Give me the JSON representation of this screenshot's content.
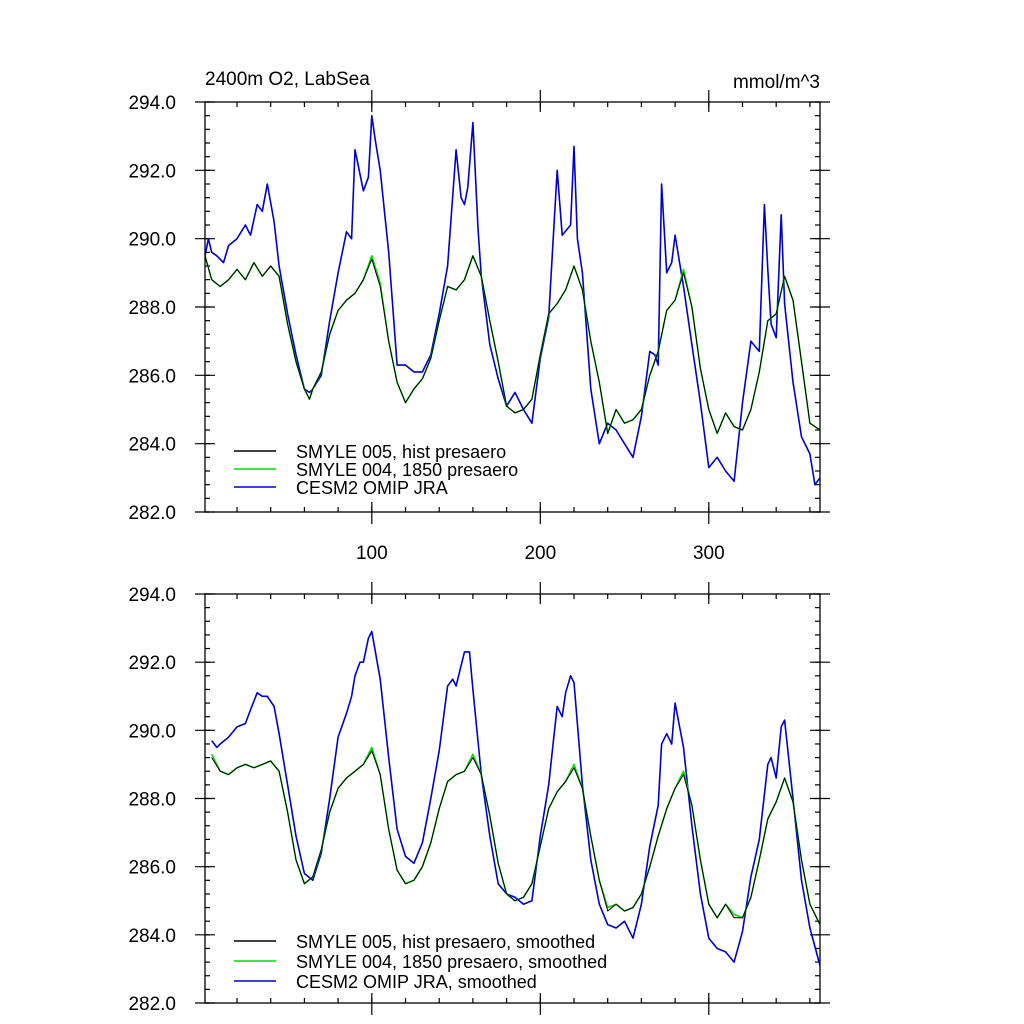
{
  "chart_data": [
    {
      "type": "line",
      "title": "2400m O2, LabSea",
      "units": "mmol/m^3",
      "xlim": [
        1,
        366
      ],
      "ylim": [
        282,
        294
      ],
      "x_ticks": [
        100,
        200,
        300
      ],
      "x_tick_labels": [
        "100",
        "200",
        "300"
      ],
      "y_ticks": [
        282,
        284,
        286,
        288,
        290,
        292,
        294
      ],
      "y_tick_labels": [
        "282.0",
        "284.0",
        "286.0",
        "288.0",
        "290.0",
        "292.0",
        "294.0"
      ],
      "legend_position": "bottom-left",
      "series": [
        {
          "name": "SMYLE 005, hist presaero",
          "color": "#000000",
          "x": [
            1,
            5,
            10,
            15,
            20,
            25,
            30,
            35,
            40,
            45,
            50,
            55,
            60,
            63,
            65,
            70,
            75,
            80,
            85,
            90,
            95,
            100,
            105,
            110,
            115,
            120,
            125,
            130,
            135,
            140,
            145,
            150,
            155,
            160,
            165,
            170,
            175,
            180,
            185,
            190,
            195,
            200,
            205,
            210,
            215,
            220,
            225,
            230,
            235,
            240,
            245,
            250,
            255,
            260,
            265,
            270,
            275,
            280,
            285,
            290,
            295,
            300,
            305,
            310,
            315,
            320,
            325,
            330,
            335,
            340,
            345,
            350,
            355,
            360,
            366
          ],
          "y": [
            289.5,
            288.8,
            288.6,
            288.8,
            289.1,
            288.8,
            289.3,
            288.9,
            289.2,
            288.9,
            287.5,
            286.4,
            285.6,
            285.3,
            285.6,
            286.1,
            287.2,
            287.9,
            288.2,
            288.4,
            288.8,
            289.4,
            288.6,
            287.0,
            285.8,
            285.2,
            285.6,
            285.9,
            286.5,
            287.6,
            288.6,
            288.5,
            288.8,
            289.5,
            288.9,
            287.6,
            286.4,
            285.1,
            284.9,
            285.0,
            285.3,
            286.6,
            287.8,
            288.1,
            288.5,
            289.2,
            288.5,
            287.0,
            285.8,
            284.3,
            285.0,
            284.6,
            284.7,
            285.0,
            286.0,
            286.7,
            287.9,
            288.2,
            289.0,
            288.0,
            286.2,
            285.0,
            284.3,
            284.9,
            284.5,
            284.4,
            285.0,
            286.1,
            287.6,
            287.8,
            288.9,
            288.2,
            286.4,
            284.6,
            284.4
          ]
        },
        {
          "name": "SMYLE 004, 1850 presaero",
          "color": "#00dd00",
          "x": [
            1,
            5,
            10,
            15,
            20,
            25,
            30,
            35,
            40,
            45,
            50,
            55,
            60,
            63,
            65,
            70,
            75,
            80,
            85,
            90,
            95,
            100,
            105,
            110,
            115,
            120,
            125,
            130,
            135,
            140,
            145,
            150,
            155,
            160,
            165,
            170,
            175,
            180,
            185,
            190,
            195,
            200,
            205,
            210,
            215,
            220,
            225,
            230,
            235,
            240,
            245,
            250,
            255,
            260,
            265,
            270,
            275,
            280,
            285,
            290,
            295,
            300,
            305,
            310,
            315,
            320,
            325,
            330,
            335,
            340,
            345,
            350,
            355,
            360,
            366
          ],
          "y": [
            289.5,
            288.8,
            288.6,
            288.8,
            289.1,
            288.8,
            289.3,
            288.9,
            289.2,
            288.9,
            287.5,
            286.4,
            285.6,
            285.3,
            285.6,
            286.1,
            287.2,
            287.9,
            288.2,
            288.4,
            288.8,
            289.5,
            288.7,
            287.0,
            285.8,
            285.2,
            285.6,
            285.9,
            286.5,
            287.6,
            288.6,
            288.5,
            288.8,
            289.5,
            288.9,
            287.6,
            286.4,
            285.1,
            284.9,
            285.0,
            285.3,
            286.6,
            287.8,
            288.1,
            288.5,
            289.2,
            288.5,
            287.0,
            285.8,
            284.3,
            285.0,
            284.6,
            284.7,
            285.0,
            286.0,
            286.7,
            287.9,
            288.2,
            289.1,
            288.0,
            286.2,
            285.0,
            284.3,
            284.9,
            284.5,
            284.4,
            285.0,
            286.1,
            287.6,
            287.8,
            288.9,
            288.2,
            286.4,
            284.6,
            284.4
          ]
        },
        {
          "name": "CESM2 OMIP JRA",
          "color": "#0000cc",
          "x": [
            1,
            3,
            5,
            8,
            12,
            15,
            20,
            25,
            28,
            32,
            35,
            38,
            42,
            45,
            50,
            55,
            60,
            63,
            65,
            70,
            75,
            80,
            85,
            88,
            90,
            95,
            98,
            100,
            102,
            105,
            110,
            115,
            120,
            125,
            130,
            135,
            140,
            145,
            150,
            153,
            155,
            157,
            160,
            163,
            165,
            170,
            175,
            180,
            185,
            190,
            195,
            200,
            205,
            208,
            210,
            213,
            218,
            220,
            222,
            225,
            230,
            235,
            240,
            245,
            250,
            255,
            260,
            265,
            268,
            270,
            272,
            275,
            278,
            280,
            285,
            290,
            295,
            300,
            305,
            310,
            315,
            320,
            325,
            330,
            333,
            335,
            337,
            340,
            343,
            345,
            350,
            355,
            360,
            363,
            366
          ],
          "y": [
            289.5,
            290.0,
            289.6,
            289.5,
            289.3,
            289.8,
            290.0,
            290.4,
            290.1,
            291.0,
            290.8,
            291.6,
            290.5,
            289.2,
            287.8,
            286.6,
            285.6,
            285.5,
            285.6,
            286.0,
            287.6,
            289.0,
            290.2,
            290.0,
            292.6,
            291.4,
            291.8,
            293.6,
            292.9,
            292.0,
            289.6,
            286.3,
            286.3,
            286.1,
            286.1,
            286.6,
            287.8,
            289.2,
            292.6,
            291.2,
            291.0,
            291.5,
            293.4,
            290.3,
            288.9,
            286.9,
            285.9,
            285.1,
            285.5,
            285.0,
            284.6,
            286.5,
            287.7,
            290.3,
            292.0,
            290.1,
            290.4,
            292.7,
            290.0,
            289.0,
            285.6,
            284.0,
            284.6,
            284.4,
            284.0,
            283.6,
            284.8,
            286.7,
            286.6,
            286.3,
            291.6,
            289.0,
            289.3,
            290.1,
            288.6,
            286.9,
            285.2,
            283.3,
            283.6,
            283.2,
            282.9,
            285.2,
            287.0,
            286.7,
            291.0,
            289.1,
            287.5,
            287.1,
            290.7,
            288.1,
            285.8,
            284.2,
            283.7,
            282.8,
            283.0
          ]
        }
      ]
    },
    {
      "type": "line",
      "xlim": [
        1,
        366
      ],
      "ylim": [
        282,
        294
      ],
      "x_ticks": [
        100,
        200,
        300
      ],
      "y_ticks": [
        282,
        284,
        286,
        288,
        290,
        292,
        294
      ],
      "y_tick_labels": [
        "282.0",
        "284.0",
        "286.0",
        "288.0",
        "290.0",
        "292.0",
        "294.0"
      ],
      "legend_position": "bottom-left",
      "series": [
        {
          "name": "SMYLE 005, hist presaero, smoothed",
          "color": "#000000",
          "x": [
            5,
            10,
            15,
            20,
            25,
            30,
            35,
            40,
            45,
            50,
            55,
            60,
            65,
            70,
            75,
            80,
            85,
            90,
            95,
            100,
            105,
            110,
            115,
            120,
            125,
            130,
            135,
            140,
            145,
            150,
            155,
            160,
            165,
            170,
            175,
            180,
            185,
            190,
            195,
            200,
            205,
            210,
            215,
            220,
            225,
            230,
            235,
            240,
            245,
            250,
            255,
            260,
            265,
            270,
            275,
            280,
            285,
            290,
            295,
            300,
            305,
            310,
            315,
            320,
            325,
            330,
            335,
            340,
            345,
            350,
            355,
            360,
            366
          ],
          "y": [
            289.2,
            288.8,
            288.7,
            288.9,
            289.0,
            288.9,
            289.0,
            289.1,
            288.8,
            287.6,
            286.2,
            285.5,
            285.7,
            286.5,
            287.6,
            288.3,
            288.6,
            288.8,
            289.0,
            289.4,
            288.7,
            287.1,
            285.9,
            285.5,
            285.6,
            286.0,
            286.7,
            287.7,
            288.5,
            288.7,
            288.8,
            289.2,
            288.7,
            287.5,
            286.1,
            285.2,
            285.0,
            285.1,
            285.5,
            286.6,
            287.7,
            288.2,
            288.5,
            288.9,
            288.3,
            286.9,
            285.6,
            284.7,
            284.9,
            284.7,
            284.8,
            285.2,
            286.0,
            286.9,
            287.7,
            288.3,
            288.7,
            287.8,
            286.2,
            284.9,
            284.5,
            284.9,
            284.5,
            284.5,
            285.1,
            286.2,
            287.4,
            287.9,
            288.6,
            287.9,
            286.2,
            284.9,
            284.3
          ]
        },
        {
          "name": "SMYLE 004, 1850 presaero, smoothed",
          "color": "#00dd00",
          "x": [
            5,
            10,
            15,
            20,
            25,
            30,
            35,
            40,
            45,
            50,
            55,
            60,
            65,
            70,
            75,
            80,
            85,
            90,
            95,
            100,
            105,
            110,
            115,
            120,
            125,
            130,
            135,
            140,
            145,
            150,
            155,
            160,
            165,
            170,
            175,
            180,
            185,
            190,
            195,
            200,
            205,
            210,
            215,
            220,
            225,
            230,
            235,
            240,
            245,
            250,
            255,
            260,
            265,
            270,
            275,
            280,
            285,
            290,
            295,
            300,
            305,
            310,
            315,
            320,
            325,
            330,
            335,
            340,
            345,
            350,
            355,
            360,
            366
          ],
          "y": [
            289.3,
            288.8,
            288.7,
            288.9,
            289.0,
            288.9,
            289.0,
            289.1,
            288.8,
            287.6,
            286.2,
            285.5,
            285.7,
            286.5,
            287.6,
            288.3,
            288.6,
            288.8,
            289.0,
            289.5,
            288.7,
            287.1,
            285.9,
            285.5,
            285.6,
            286.0,
            286.7,
            287.7,
            288.5,
            288.7,
            288.8,
            289.3,
            288.7,
            287.5,
            286.1,
            285.2,
            285.0,
            285.1,
            285.5,
            286.6,
            287.7,
            288.2,
            288.5,
            289.0,
            288.3,
            286.9,
            285.6,
            284.8,
            284.9,
            284.7,
            284.8,
            285.2,
            286.0,
            286.9,
            287.7,
            288.3,
            288.8,
            287.8,
            286.2,
            284.9,
            284.5,
            284.9,
            284.6,
            284.5,
            285.1,
            286.2,
            287.4,
            287.9,
            288.6,
            287.9,
            286.2,
            284.9,
            284.3
          ]
        },
        {
          "name": "CESM2 OMIP JRA, smoothed",
          "color": "#0000cc",
          "x": [
            5,
            8,
            10,
            15,
            20,
            25,
            28,
            32,
            35,
            38,
            42,
            45,
            50,
            55,
            60,
            65,
            70,
            75,
            80,
            85,
            88,
            90,
            93,
            95,
            98,
            100,
            105,
            110,
            115,
            120,
            125,
            130,
            135,
            140,
            145,
            148,
            150,
            153,
            155,
            158,
            160,
            165,
            170,
            175,
            180,
            185,
            190,
            195,
            200,
            205,
            208,
            210,
            213,
            215,
            218,
            220,
            225,
            230,
            235,
            240,
            245,
            250,
            255,
            260,
            265,
            270,
            272,
            275,
            278,
            280,
            285,
            290,
            295,
            300,
            305,
            310,
            315,
            320,
            325,
            330,
            335,
            337,
            340,
            343,
            345,
            350,
            355,
            360,
            366
          ],
          "y": [
            289.7,
            289.5,
            289.6,
            289.8,
            290.1,
            290.2,
            290.6,
            291.1,
            291.0,
            291.0,
            290.7,
            289.9,
            288.4,
            286.9,
            285.8,
            285.6,
            286.4,
            288.0,
            289.8,
            290.5,
            291.0,
            291.6,
            292.0,
            292.0,
            292.7,
            292.9,
            291.5,
            289.2,
            287.1,
            286.3,
            286.1,
            286.7,
            288.0,
            289.4,
            291.3,
            291.5,
            291.3,
            291.9,
            292.3,
            292.3,
            291.2,
            288.7,
            286.9,
            285.5,
            285.2,
            285.1,
            284.9,
            285.0,
            286.9,
            288.4,
            289.8,
            290.7,
            290.4,
            291.1,
            291.6,
            291.4,
            288.4,
            286.2,
            284.9,
            284.3,
            284.2,
            284.4,
            283.9,
            284.9,
            286.6,
            287.8,
            289.6,
            289.9,
            289.6,
            290.8,
            289.5,
            287.2,
            285.2,
            283.9,
            283.6,
            283.5,
            283.2,
            284.1,
            285.7,
            286.8,
            289.0,
            289.2,
            288.6,
            290.1,
            290.3,
            288.0,
            285.6,
            284.2,
            283.1
          ]
        }
      ]
    }
  ]
}
